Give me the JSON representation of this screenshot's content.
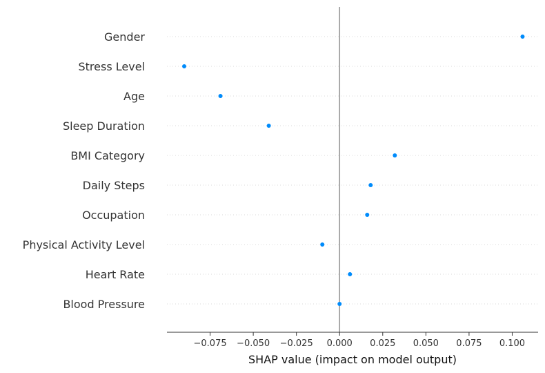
{
  "chart_data": {
    "type": "scatter",
    "xlabel": "SHAP value (impact on model output)",
    "xlim": [
      -0.1,
      0.115
    ],
    "x_ticks": [
      "−0.075",
      "−0.050",
      "−0.025",
      "0.000",
      "0.025",
      "0.050",
      "0.075",
      "0.100"
    ],
    "x_tick_values": [
      -0.075,
      -0.05,
      -0.025,
      0.0,
      0.025,
      0.05,
      0.075,
      0.1
    ],
    "grid": "horizontal dotted guide lines per feature",
    "zero_line": true,
    "point_color": "#008bfb",
    "categories": [
      "Gender",
      "Stress Level",
      "Age",
      "Sleep Duration",
      "BMI Category",
      "Daily Steps",
      "Occupation",
      "Physical Activity Level",
      "Heart Rate",
      "Blood Pressure"
    ],
    "values": [
      0.106,
      -0.09,
      -0.069,
      -0.041,
      0.032,
      0.018,
      0.016,
      -0.01,
      0.006,
      0.0
    ]
  }
}
